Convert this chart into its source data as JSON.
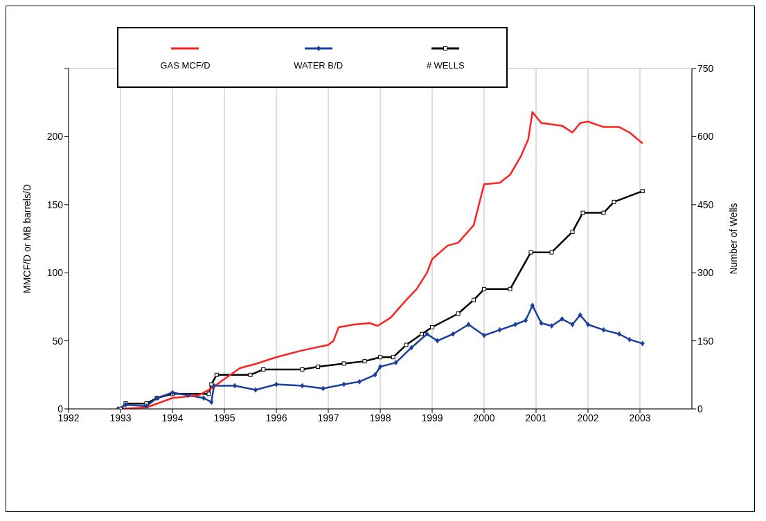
{
  "chart_data": {
    "type": "line",
    "ylabel": "MMCF/D or MB barrels/D",
    "y2label": "Number of Wells",
    "xlim": [
      1992,
      2004
    ],
    "xticks": [
      1992,
      1993,
      1994,
      1995,
      1996,
      1997,
      1998,
      1999,
      2000,
      2001,
      2002,
      2003
    ],
    "ylim": [
      0,
      250
    ],
    "yticks": [
      0,
      50,
      100,
      150,
      200,
      {
        "value": 250,
        "label": null
      }
    ],
    "y2lim": [
      0,
      750
    ],
    "y2ticks": [
      0,
      150,
      300,
      450,
      600,
      750
    ],
    "grid": true,
    "legend": "top left",
    "series": [
      {
        "name": "GAS MCF/D",
        "color": "#ff2020",
        "marker": "none",
        "x": [
          1992.95,
          1993.5,
          1994,
          1994.5,
          1994.75,
          1995,
          1995.3,
          1995.6,
          1996,
          1996.5,
          1997,
          1997.1,
          1997.2,
          1997.5,
          1997.8,
          1997.95,
          1998.2,
          1998.5,
          1998.7,
          1998.9,
          1999,
          1999.3,
          1999.5,
          1999.8,
          2000,
          2000.3,
          2000.5,
          2000.7,
          2000.85,
          2000.93,
          2001.1,
          2001.5,
          2001.7,
          2001.85,
          2002,
          2002.3,
          2002.6,
          2002.8,
          2003.05
        ],
        "values": [
          0,
          1,
          8,
          10,
          15,
          22,
          30,
          33,
          38,
          43,
          47,
          50,
          60,
          62,
          63,
          61,
          67,
          80,
          88,
          100,
          110,
          120,
          122,
          135,
          165,
          166,
          172,
          185,
          198,
          218,
          210,
          208,
          203,
          210,
          211,
          207,
          207,
          203,
          195
        ]
      },
      {
        "name": "WATER B/D",
        "color": "#1a3fa0",
        "marker": "diamond",
        "x": [
          1992.95,
          1993.1,
          1993.5,
          1993.7,
          1994,
          1994.3,
          1994.6,
          1994.75,
          1994.8,
          1995.2,
          1995.6,
          1996,
          1996.5,
          1996.9,
          1997.3,
          1997.6,
          1997.9,
          1998,
          1998.3,
          1998.6,
          1998.9,
          1999.1,
          1999.4,
          1999.7,
          2000,
          2000.3,
          2000.6,
          2000.8,
          2000.93,
          2001.1,
          2001.3,
          2001.5,
          2001.7,
          2001.85,
          2002,
          2002.3,
          2002.6,
          2002.8,
          2003.05
        ],
        "values": [
          0,
          3,
          2,
          8,
          12,
          10,
          8,
          5,
          17,
          17,
          14,
          18,
          17,
          15,
          18,
          20,
          25,
          31,
          34,
          45,
          55,
          50,
          55,
          62,
          54,
          58,
          62,
          65,
          76,
          63,
          61,
          66,
          62,
          69,
          62,
          58,
          55,
          51,
          48
        ]
      },
      {
        "name": "# WELLS",
        "color": "#000000",
        "marker": "square",
        "axis": "y2",
        "x": [
          1993,
          1993.1,
          1993.5,
          1993.7,
          1994,
          1994.7,
          1994.75,
          1994.85,
          1995.5,
          1995.75,
          1996.5,
          1996.8,
          1997.3,
          1997.7,
          1998,
          1998.25,
          1998.5,
          1998.8,
          1999,
          1999.5,
          1999.8,
          2000,
          2000.5,
          2000.9,
          2001.3,
          2001.7,
          2001.9,
          2002.3,
          2002.5,
          2003.05
        ],
        "values": [
          0,
          12,
          12,
          24,
          33,
          33,
          54,
          75,
          75,
          87,
          87,
          93,
          100,
          105,
          114,
          114,
          141,
          165,
          180,
          210,
          240,
          264,
          264,
          345,
          345,
          390,
          432,
          432,
          456,
          480
        ]
      }
    ]
  }
}
